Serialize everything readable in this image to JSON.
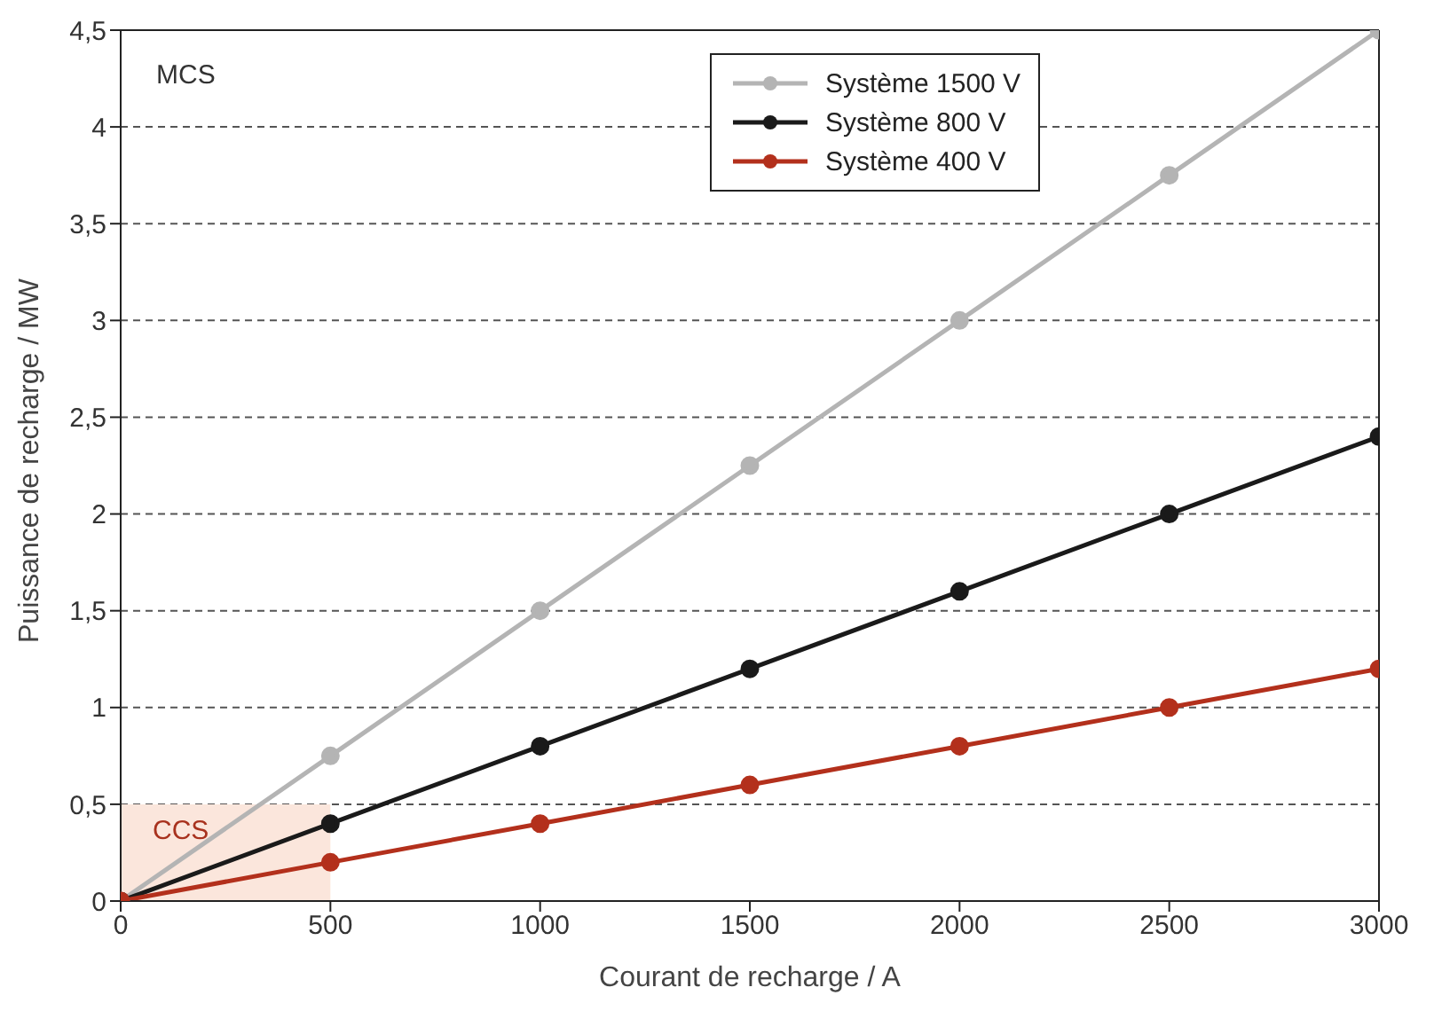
{
  "chart_data": {
    "type": "line",
    "xlabel": "Courant de recharge / A",
    "ylabel": "Puissance de recharge / MW",
    "x": [
      0,
      500,
      1000,
      1500,
      2000,
      2500,
      3000
    ],
    "series": [
      {
        "type": "area",
        "color": "#fbe6dc",
        "marker": "none",
        "x": [
          0,
          500
        ],
        "values": [
          0.5,
          0.5
        ]
      },
      {
        "name": "Système 1500 V",
        "color": "#b4b4b4",
        "values": [
          0,
          0.75,
          1.5,
          2.25,
          3,
          3.75,
          4.5
        ]
      },
      {
        "name": "Système 800 V",
        "color": "#1a1a1a",
        "values": [
          0,
          0.4,
          0.8,
          1.2,
          1.6,
          2,
          2.4
        ]
      },
      {
        "name": "Système 400 V",
        "color": "#b3301c",
        "values": [
          0,
          0.2,
          0.4,
          0.6,
          0.8,
          1,
          1.2
        ]
      }
    ],
    "xlim": [
      0,
      3000
    ],
    "xticks": [
      0,
      500,
      1000,
      1500,
      2000,
      2500,
      3000
    ],
    "ylim": [
      0,
      4.5
    ],
    "yticks": [
      0,
      {
        "value": 0.5,
        "label": "0,5"
      },
      1,
      {
        "value": 1.5,
        "label": "1,5"
      },
      2,
      {
        "value": 2.5,
        "label": "2,5"
      },
      3,
      {
        "value": 3.5,
        "label": "3,5"
      },
      4,
      {
        "value": 4.5,
        "label": "4,5"
      }
    ],
    "annotations": [
      "MCS",
      "CCS"
    ],
    "grid": "y",
    "legend": "top right",
    "marker": "circle",
    "line_style": "solid"
  }
}
